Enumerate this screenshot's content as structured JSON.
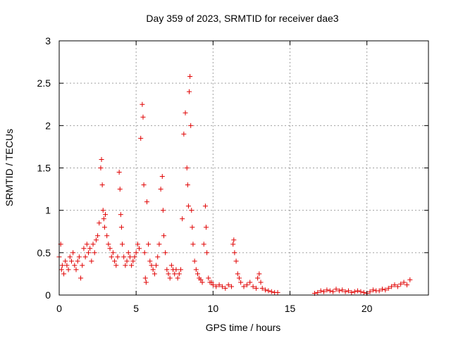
{
  "chart_data": {
    "type": "scatter",
    "title": "Day 359 of 2023, SRMTID for receiver dae3",
    "xlabel": "GPS time / hours",
    "ylabel": "SRMTID / TECUs",
    "xlim": [
      0,
      24
    ],
    "ylim": [
      0,
      3
    ],
    "xticks": [
      0,
      5,
      10,
      15,
      20
    ],
    "yticks": [
      0,
      0.5,
      1,
      1.5,
      2,
      2.5,
      3
    ],
    "xtick_labels": [
      "0",
      "5",
      "10",
      "15",
      "20"
    ],
    "ytick_labels": [
      "0",
      "0.5",
      "1",
      "1.5",
      "2",
      "2.5",
      "3"
    ],
    "grid": true,
    "marker": "+",
    "color": "#e00000",
    "series": [
      {
        "name": "SRMTID",
        "x": [
          0.0,
          0.1,
          0.15,
          0.2,
          0.3,
          0.4,
          0.5,
          0.6,
          0.7,
          0.8,
          0.9,
          1.0,
          1.1,
          1.2,
          1.3,
          1.4,
          1.5,
          1.6,
          1.7,
          1.8,
          1.9,
          2.0,
          2.1,
          2.2,
          2.3,
          2.4,
          2.5,
          2.6,
          2.7,
          2.75,
          2.8,
          2.85,
          2.9,
          2.95,
          3.0,
          3.1,
          3.2,
          3.3,
          3.4,
          3.5,
          3.6,
          3.7,
          3.8,
          3.9,
          3.95,
          4.0,
          4.05,
          4.1,
          4.2,
          4.3,
          4.4,
          4.5,
          4.6,
          4.7,
          4.8,
          4.9,
          5.0,
          5.1,
          5.2,
          5.3,
          5.4,
          5.45,
          5.5,
          5.55,
          5.6,
          5.65,
          5.7,
          5.8,
          5.9,
          6.0,
          6.1,
          6.2,
          6.3,
          6.4,
          6.5,
          6.6,
          6.7,
          6.75,
          6.8,
          6.9,
          7.0,
          7.1,
          7.2,
          7.3,
          7.4,
          7.5,
          7.6,
          7.7,
          7.8,
          7.9,
          8.0,
          8.1,
          8.2,
          8.3,
          8.35,
          8.4,
          8.45,
          8.5,
          8.55,
          8.6,
          8.65,
          8.7,
          8.8,
          8.9,
          9.0,
          9.1,
          9.2,
          9.3,
          9.4,
          9.5,
          9.55,
          9.6,
          9.7,
          9.8,
          9.9,
          10.0,
          10.2,
          10.4,
          10.6,
          10.8,
          11.0,
          11.2,
          11.3,
          11.35,
          11.4,
          11.5,
          11.6,
          11.7,
          11.8,
          12.0,
          12.2,
          12.4,
          12.6,
          12.8,
          12.9,
          13.0,
          13.1,
          13.2,
          13.4,
          13.6,
          13.8,
          14.0,
          14.2,
          16.6,
          16.8,
          17.0,
          17.2,
          17.4,
          17.6,
          17.8,
          18.0,
          18.2,
          18.4,
          18.6,
          18.8,
          19.0,
          19.2,
          19.4,
          19.6,
          19.8,
          20.0,
          20.2,
          20.4,
          20.6,
          20.8,
          21.0,
          21.2,
          21.4,
          21.6,
          21.8,
          22.0,
          22.2,
          22.4,
          22.6,
          22.8
        ],
        "y": [
          0.45,
          0.6,
          0.3,
          0.35,
          0.25,
          0.4,
          0.35,
          0.3,
          0.45,
          0.4,
          0.5,
          0.35,
          0.3,
          0.4,
          0.45,
          0.2,
          0.35,
          0.55,
          0.45,
          0.6,
          0.5,
          0.55,
          0.4,
          0.6,
          0.5,
          0.65,
          0.7,
          0.85,
          1.5,
          1.6,
          1.3,
          1.0,
          0.9,
          0.8,
          0.95,
          0.7,
          0.6,
          0.55,
          0.45,
          0.5,
          0.4,
          0.35,
          0.45,
          1.45,
          1.25,
          0.95,
          0.8,
          0.6,
          0.45,
          0.35,
          0.4,
          0.5,
          0.45,
          0.35,
          0.4,
          0.45,
          0.5,
          0.6,
          0.55,
          1.85,
          2.25,
          2.1,
          1.3,
          0.5,
          0.2,
          0.15,
          1.1,
          0.6,
          0.4,
          0.35,
          0.3,
          0.25,
          0.35,
          0.45,
          0.6,
          1.25,
          1.4,
          1.0,
          0.7,
          0.5,
          0.3,
          0.25,
          0.2,
          0.35,
          0.3,
          0.25,
          0.3,
          0.2,
          0.25,
          0.3,
          0.9,
          1.9,
          2.15,
          1.5,
          1.3,
          1.05,
          2.4,
          2.58,
          2.0,
          1.0,
          0.8,
          0.6,
          0.4,
          0.3,
          0.25,
          0.2,
          0.18,
          0.15,
          0.6,
          1.05,
          0.8,
          0.5,
          0.2,
          0.15,
          0.15,
          0.12,
          0.1,
          0.12,
          0.1,
          0.08,
          0.12,
          0.1,
          0.6,
          0.65,
          0.5,
          0.4,
          0.25,
          0.2,
          0.15,
          0.1,
          0.12,
          0.15,
          0.1,
          0.08,
          0.2,
          0.25,
          0.15,
          0.08,
          0.06,
          0.05,
          0.04,
          0.03,
          0.03,
          0.02,
          0.03,
          0.05,
          0.04,
          0.06,
          0.05,
          0.04,
          0.07,
          0.05,
          0.06,
          0.04,
          0.05,
          0.03,
          0.04,
          0.05,
          0.04,
          0.03,
          0.02,
          0.04,
          0.06,
          0.05,
          0.05,
          0.07,
          0.06,
          0.08,
          0.1,
          0.12,
          0.1,
          0.13,
          0.15,
          0.12,
          0.18
        ]
      }
    ]
  }
}
